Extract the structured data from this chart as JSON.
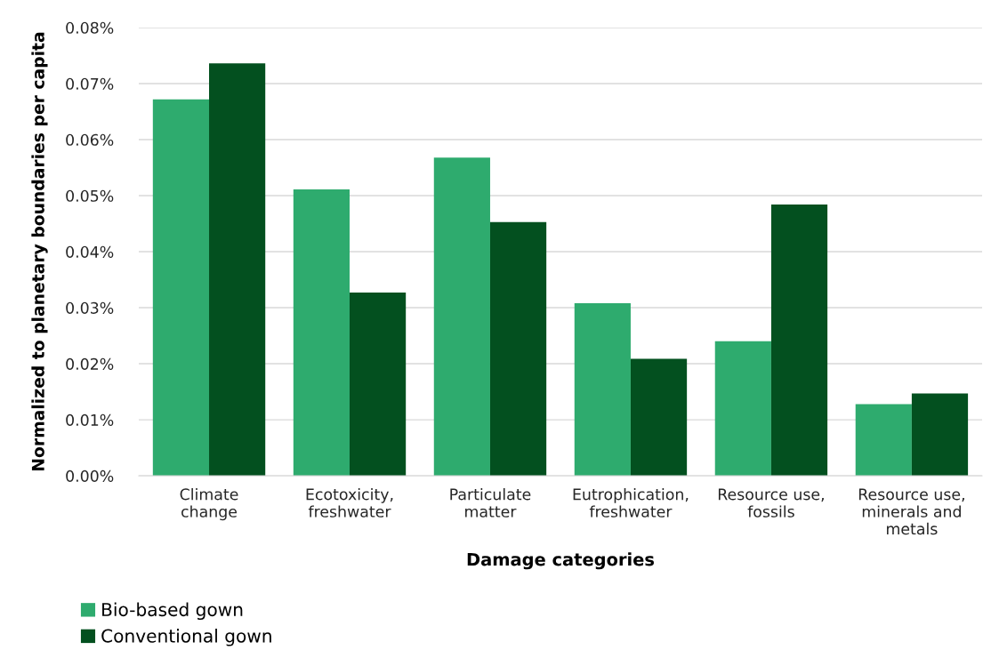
{
  "chart_data": {
    "type": "bar",
    "xlabel": "Damage categories",
    "ylabel": "Normalized to planetary boundaries per capita",
    "categories": [
      "Climate\nchange",
      "Ecotoxicity,\nfreshwater",
      "Particulate\nmatter",
      "Eutrophication,\nfreshwater",
      "Resource use,\nfossils",
      "Resource use,\nminerals and\nmetals"
    ],
    "series": [
      {
        "name": "Bio-based gown",
        "color": "#2eab6e",
        "values": [
          0.0672,
          0.0511,
          0.0568,
          0.0308,
          0.024,
          0.0128
        ]
      },
      {
        "name": "Conventional gown",
        "color": "#03501f",
        "values": [
          0.0736,
          0.0327,
          0.0453,
          0.0209,
          0.0484,
          0.0147
        ]
      }
    ],
    "ylim": [
      0,
      0.08
    ],
    "yticks": [
      {
        "value": 0,
        "label": "0.00%"
      },
      {
        "value": 0.01,
        "label": "0.01%"
      },
      {
        "value": 0.02,
        "label": "0.02%"
      },
      {
        "value": 0.03,
        "label": "0.03%"
      },
      {
        "value": 0.04,
        "label": "0.04%"
      },
      {
        "value": 0.05,
        "label": "0.05%"
      },
      {
        "value": 0.06,
        "label": "0.06%"
      },
      {
        "value": 0.07,
        "label": "0.07%"
      },
      {
        "value": 0.08,
        "label": "0.08%"
      }
    ],
    "grid": "y",
    "legend": "bottom left"
  }
}
